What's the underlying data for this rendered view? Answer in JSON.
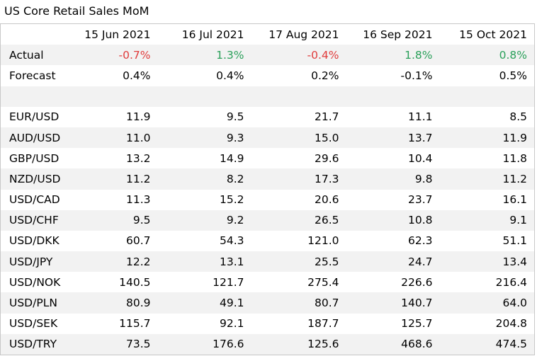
{
  "title": "US Core Retail Sales MoM",
  "columns": [
    "15 Jun 2021",
    "16 Jul 2021",
    "17 Aug 2021",
    "16 Sep 2021",
    "15 Oct 2021"
  ],
  "colors": {
    "negative": "#e03c3c",
    "positive": "#2aa05a",
    "stripe": "#f2f2f2"
  },
  "rows": [
    {
      "label": "Actual",
      "values": [
        "-0.7%",
        "1.3%",
        "-0.4%",
        "1.8%",
        "0.8%"
      ],
      "tones": [
        "neg",
        "pos",
        "neg",
        "pos",
        "pos"
      ]
    },
    {
      "label": "Forecast",
      "values": [
        "0.4%",
        "0.4%",
        "0.2%",
        "-0.1%",
        "0.5%"
      ]
    },
    {
      "label": "",
      "values": [
        "",
        "",
        "",
        "",
        ""
      ]
    },
    {
      "label": "EUR/USD",
      "values": [
        "11.9",
        "9.5",
        "21.7",
        "11.1",
        "8.5"
      ]
    },
    {
      "label": "AUD/USD",
      "values": [
        "11.0",
        "9.3",
        "15.0",
        "13.7",
        "11.9"
      ]
    },
    {
      "label": "GBP/USD",
      "values": [
        "13.2",
        "14.9",
        "29.6",
        "10.4",
        "11.8"
      ]
    },
    {
      "label": "NZD/USD",
      "values": [
        "11.2",
        "8.2",
        "17.3",
        "9.8",
        "11.2"
      ]
    },
    {
      "label": "USD/CAD",
      "values": [
        "11.3",
        "15.2",
        "20.6",
        "23.7",
        "16.1"
      ]
    },
    {
      "label": "USD/CHF",
      "values": [
        "9.5",
        "9.2",
        "26.5",
        "10.8",
        "9.1"
      ]
    },
    {
      "label": "USD/DKK",
      "values": [
        "60.7",
        "54.3",
        "121.0",
        "62.3",
        "51.1"
      ]
    },
    {
      "label": "USD/JPY",
      "values": [
        "12.2",
        "13.1",
        "25.5",
        "24.7",
        "13.4"
      ]
    },
    {
      "label": "USD/NOK",
      "values": [
        "140.5",
        "121.7",
        "275.4",
        "226.6",
        "216.4"
      ]
    },
    {
      "label": "USD/PLN",
      "values": [
        "80.9",
        "49.1",
        "80.7",
        "140.7",
        "64.0"
      ]
    },
    {
      "label": "USD/SEK",
      "values": [
        "115.7",
        "92.1",
        "187.7",
        "125.7",
        "204.8"
      ]
    },
    {
      "label": "USD/TRY",
      "values": [
        "73.5",
        "176.6",
        "125.6",
        "468.6",
        "474.5"
      ]
    }
  ]
}
